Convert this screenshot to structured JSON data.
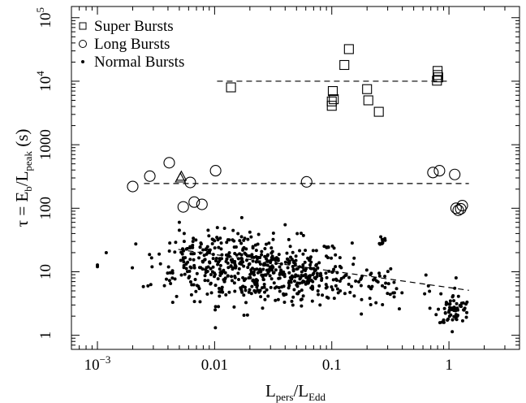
{
  "chart_data": {
    "type": "scatter",
    "title": "",
    "x_scale": "log",
    "y_scale": "log",
    "xlim": [
      0.0006,
      4.0
    ],
    "ylim": [
      0.6,
      150000
    ],
    "xlabel": {
      "main": "L",
      "sub1": "pers",
      "sep": "/L",
      "sub2": "Edd"
    },
    "ylabel": {
      "main": "τ = E",
      "sub1": "b",
      "sep": "/L",
      "sub2": "peak",
      "unit": " (s)"
    },
    "x_ticks": [
      {
        "value": 0.001,
        "base": "10",
        "exp": "−3"
      },
      {
        "value": 0.01,
        "label": "0.01"
      },
      {
        "value": 0.1,
        "label": "0.1"
      },
      {
        "value": 1,
        "label": "1"
      }
    ],
    "y_ticks": [
      {
        "value": 1,
        "label": "1"
      },
      {
        "value": 10,
        "label": "10"
      },
      {
        "value": 100,
        "label": "100"
      },
      {
        "value": 1000,
        "label": "1000"
      },
      {
        "value": 10000,
        "base": "10",
        "exp": "4"
      },
      {
        "value": 100000,
        "base": "10",
        "exp": "5"
      }
    ],
    "legend": {
      "position": "top-left",
      "entries": [
        {
          "name": "Super Bursts",
          "marker": "square"
        },
        {
          "name": "Long Bursts",
          "marker": "circle"
        },
        {
          "name": "Normal Bursts",
          "marker": "dot"
        }
      ]
    },
    "series": [
      {
        "name": "Super Bursts",
        "marker": "square",
        "points": [
          [
            0.0138,
            8000
          ],
          [
            0.1,
            4100
          ],
          [
            0.1,
            4800
          ],
          [
            0.102,
            7000
          ],
          [
            0.104,
            5200
          ],
          [
            0.128,
            18000
          ],
          [
            0.14,
            32000
          ],
          [
            0.2,
            7500
          ],
          [
            0.205,
            5000
          ],
          [
            0.252,
            3300
          ],
          [
            0.79,
            10200
          ],
          [
            0.8,
            12500
          ],
          [
            0.8,
            14500
          ],
          [
            0.81,
            11500
          ]
        ]
      },
      {
        "name": "Long Bursts",
        "marker": "circle",
        "points": [
          [
            0.002,
            220
          ],
          [
            0.0028,
            320
          ],
          [
            0.0041,
            520
          ],
          [
            0.0054,
            105
          ],
          [
            0.0062,
            255
          ],
          [
            0.0067,
            125
          ],
          [
            0.0078,
            115
          ],
          [
            0.0102,
            390
          ],
          [
            0.061,
            260
          ],
          [
            0.73,
            365
          ],
          [
            0.83,
            390
          ],
          [
            1.12,
            340
          ],
          [
            1.15,
            100
          ],
          [
            1.2,
            93
          ],
          [
            1.26,
            98
          ],
          [
            1.3,
            110
          ]
        ]
      },
      {
        "name": "Long Bursts (triangles)",
        "marker": "triangle",
        "points": [
          [
            0.0051,
            300
          ],
          [
            0.0052,
            320
          ]
        ]
      },
      {
        "name": "Normal Bursts",
        "marker": "dot",
        "clusters": [
          {
            "x_center": 0.025,
            "x_spread": 0.38,
            "y_center": 10,
            "y_spread": 0.26,
            "count": 420
          },
          {
            "x_center": 0.009,
            "x_spread": 0.22,
            "y_center": 18,
            "y_spread": 0.18,
            "count": 110
          },
          {
            "x_center": 0.06,
            "x_spread": 0.2,
            "y_center": 6.5,
            "y_spread": 0.15,
            "count": 70
          },
          {
            "x_center": 0.25,
            "x_spread": 0.25,
            "y_center": 6,
            "y_spread": 0.2,
            "count": 45
          },
          {
            "x_center": 1.1,
            "x_spread": 0.07,
            "y_center": 2.5,
            "y_spread": 0.12,
            "count": 60
          },
          {
            "x_center": 0.27,
            "x_spread": 0.01,
            "y_center": 31,
            "y_spread": 0.04,
            "count": 10
          }
        ],
        "points": [
          [
            0.001,
            12
          ],
          [
            0.001,
            12.8
          ],
          [
            0.0027,
            6
          ],
          [
            0.005,
            60
          ],
          [
            0.005,
            45
          ],
          [
            0.0055,
            40
          ],
          [
            0.0088,
            45
          ],
          [
            0.02,
            42
          ],
          [
            0.04,
            55
          ],
          [
            0.0055,
            30
          ],
          [
            1.12,
            5.5
          ],
          [
            1.15,
            8
          ],
          [
            1.1,
            3.5
          ],
          [
            0.95,
            3.3
          ],
          [
            0.62,
            4.5
          ]
        ]
      }
    ],
    "reference_lines": [
      {
        "name": "super-burst-mean",
        "style": "dashed",
        "x": [
          0.0105,
          1.0
        ],
        "y": [
          10000,
          10000
        ]
      },
      {
        "name": "long-burst-mean",
        "style": "dashed",
        "x": [
          0.0025,
          1.48
        ],
        "y": [
          245,
          245
        ]
      },
      {
        "name": "normal-burst-trend",
        "style": "dashed",
        "x": [
          0.0049,
          1.48
        ],
        "y": [
          22.5,
          5.1
        ]
      }
    ]
  }
}
